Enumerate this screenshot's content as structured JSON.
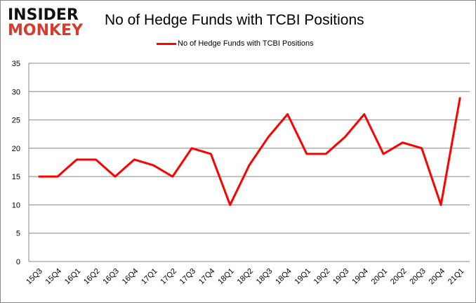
{
  "logo": {
    "line1": "INSIDER",
    "line2": "MONKEY"
  },
  "chart_data": {
    "type": "line",
    "title": "No of Hedge Funds with TCBI Positions",
    "legend": "No of Hedge Funds with TCBI Positions",
    "legend_position": "top-center",
    "categories": [
      "15Q3",
      "15Q4",
      "16Q1",
      "16Q2",
      "16Q3",
      "16Q4",
      "17Q1",
      "17Q2",
      "17Q3",
      "17Q4",
      "18Q1",
      "18Q2",
      "18Q3",
      "18Q4",
      "19Q1",
      "19Q2",
      "19Q3",
      "19Q4",
      "20Q1",
      "20Q2",
      "20Q3",
      "20Q4",
      "21Q1"
    ],
    "values": [
      15,
      15,
      18,
      18,
      15,
      18,
      17,
      15,
      20,
      19,
      10,
      17,
      22,
      26,
      19,
      19,
      22,
      26,
      19,
      21,
      20,
      10,
      29
    ],
    "yticks": [
      0,
      5,
      10,
      15,
      20,
      25,
      30,
      35
    ],
    "ylim": [
      0,
      35
    ],
    "grid": true,
    "color": "#ff0000"
  }
}
